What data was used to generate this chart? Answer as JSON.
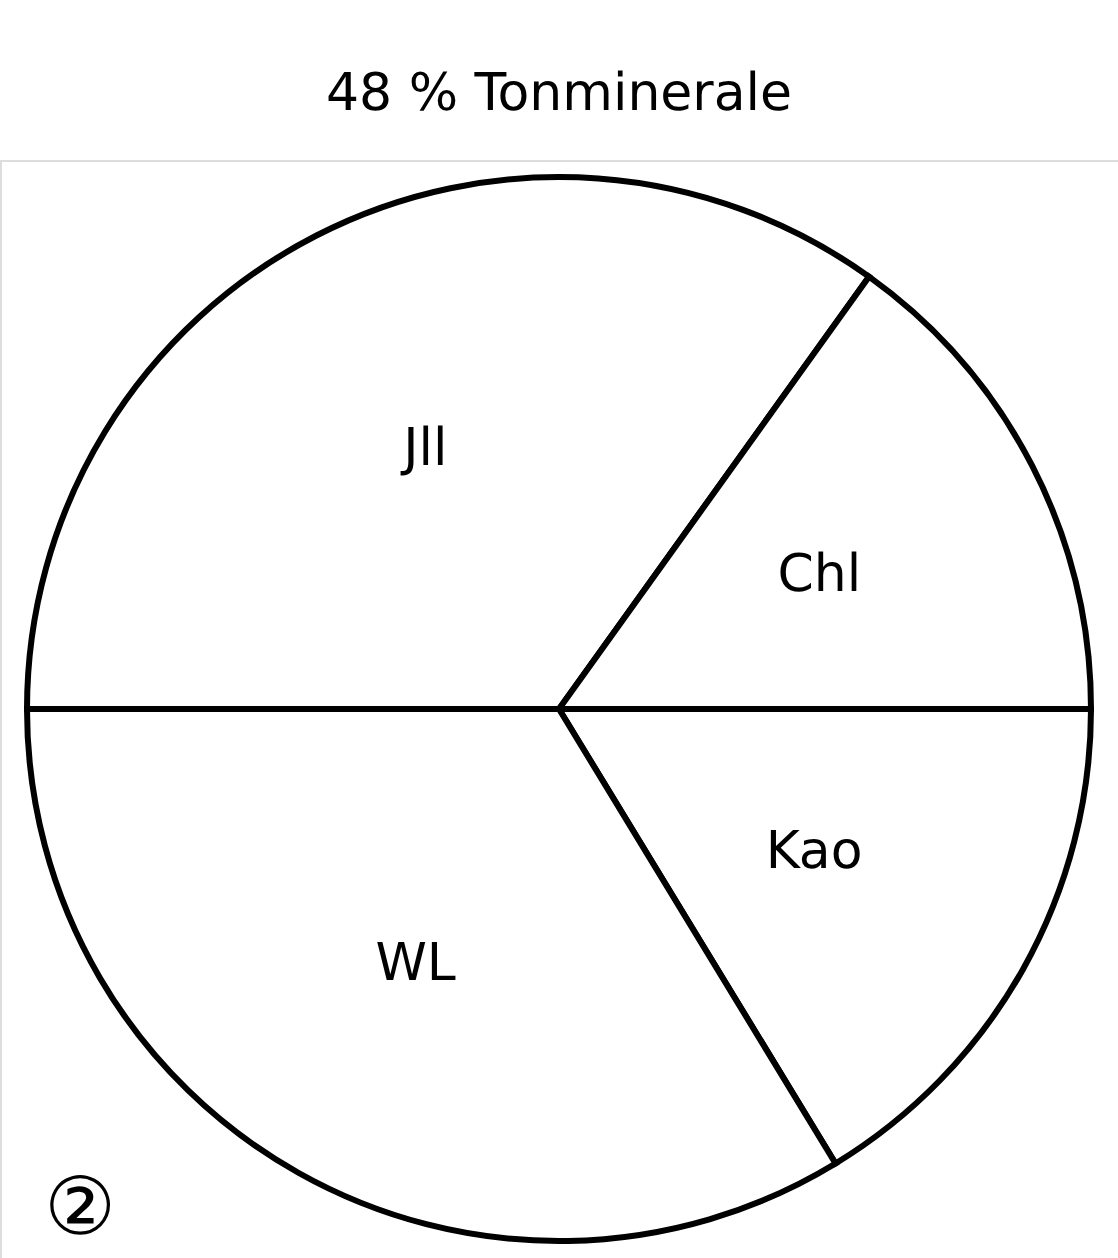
{
  "chart_data": {
    "type": "pie",
    "title": "48 % Tonminerale",
    "categories": [
      "Jll",
      "Chl",
      "Kao",
      "WL"
    ],
    "values": [
      34.9,
      15.1,
      16.3,
      33.7
    ],
    "colors": [
      "#ffffff",
      "#ffffff",
      "#ffffff",
      "#ffffff"
    ],
    "annotations": [
      "②"
    ]
  }
}
